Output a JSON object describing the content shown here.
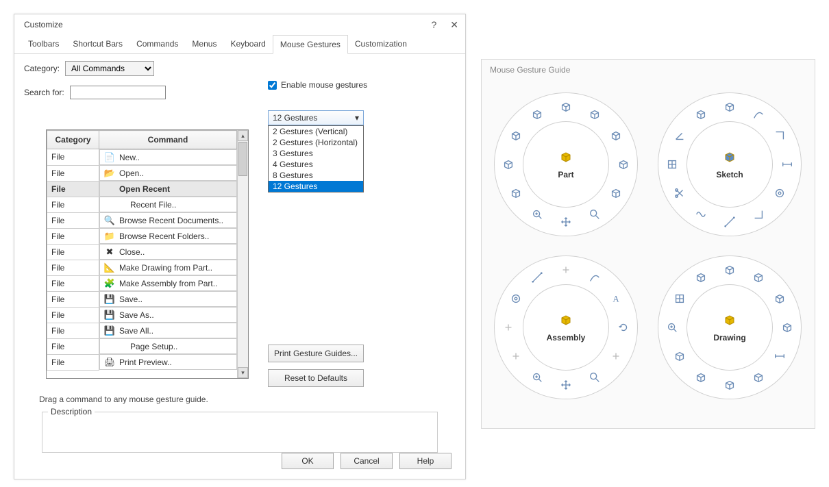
{
  "dialog": {
    "title": "Customize",
    "help_icon": "?",
    "close_icon": "✕",
    "tabs": [
      "Toolbars",
      "Shortcut Bars",
      "Commands",
      "Menus",
      "Keyboard",
      "Mouse Gestures",
      "Customization"
    ],
    "active_tab": 5,
    "category_label": "Category:",
    "category_value": "All Commands",
    "search_label": "Search for:",
    "enable_gestures_label": "Enable mouse gestures",
    "enable_gestures_checked": true,
    "gesture_select_value": "12 Gestures",
    "gesture_options": [
      "2 Gestures (Vertical)",
      "2 Gestures (Horizontal)",
      "3 Gestures",
      "4 Gestures",
      "8 Gestures",
      "12 Gestures"
    ],
    "gesture_selected_index": 5,
    "table": {
      "headers": [
        "Category",
        "Command"
      ],
      "rows": [
        {
          "cat": "File",
          "icon": "📄",
          "cmd": "New..",
          "sel": false
        },
        {
          "cat": "File",
          "icon": "📂",
          "cmd": "Open..",
          "sel": false
        },
        {
          "cat": "File",
          "icon": "",
          "cmd": "Open Recent",
          "sel": true
        },
        {
          "cat": "File",
          "icon": "",
          "cmd": "Recent File..",
          "sel": false,
          "indent": true
        },
        {
          "cat": "File",
          "icon": "🔍",
          "cmd": "Browse Recent Documents..",
          "sel": false
        },
        {
          "cat": "File",
          "icon": "📁",
          "cmd": "Browse Recent Folders..",
          "sel": false
        },
        {
          "cat": "File",
          "icon": "✖",
          "cmd": "Close..",
          "sel": false
        },
        {
          "cat": "File",
          "icon": "📐",
          "cmd": "Make Drawing from Part..",
          "sel": false
        },
        {
          "cat": "File",
          "icon": "🧩",
          "cmd": "Make Assembly from Part..",
          "sel": false
        },
        {
          "cat": "File",
          "icon": "💾",
          "cmd": "Save..",
          "sel": false
        },
        {
          "cat": "File",
          "icon": "💾",
          "cmd": "Save As..",
          "sel": false
        },
        {
          "cat": "File",
          "icon": "💾",
          "cmd": "Save All..",
          "sel": false
        },
        {
          "cat": "File",
          "icon": "",
          "cmd": "Page Setup..",
          "sel": false,
          "indent": true
        },
        {
          "cat": "File",
          "icon": "🖨",
          "cmd": "Print Preview..",
          "sel": false
        }
      ]
    },
    "print_guides_label": "Print Gesture Guides...",
    "reset_defaults_label": "Reset to Defaults",
    "drag_hint": "Drag a command to any mouse gesture guide.",
    "description_label": "Description",
    "ok_label": "OK",
    "cancel_label": "Cancel",
    "help_label": "Help"
  },
  "guide": {
    "title": "Mouse Gesture Guide",
    "wheels": [
      {
        "label": "Part",
        "center_color": "#e6b800",
        "slots": [
          "cube",
          "cube",
          "cube",
          "cube",
          "cube",
          "zoom",
          "move",
          "mag",
          "cube",
          "cube",
          "cube",
          "cube"
        ]
      },
      {
        "label": "Sketch",
        "center_color": "#5a8ccc",
        "slots": [
          "cube",
          "curve",
          "corner",
          "dim",
          "target",
          "corner2",
          "line",
          "wave",
          "cut",
          "grid",
          "angle",
          "cube"
        ]
      },
      {
        "label": "Assembly",
        "center_color": "#e6b800",
        "slots": [
          "plus",
          "curve",
          "A",
          "rot",
          "plus",
          "zoom",
          "move",
          "mag",
          "plus",
          "plus",
          "target",
          "line"
        ]
      },
      {
        "label": "Drawing",
        "center_color": "#e6b800",
        "slots": [
          "cube",
          "cube",
          "cube",
          "cube",
          "dim",
          "cube",
          "cube",
          "cube",
          "cube",
          "mag",
          "grid",
          "cube"
        ]
      }
    ],
    "wheel_outer_stroke": "#d0d0d0",
    "wheel_bg": "#ffffff",
    "icon_color": "#6a8bb5"
  }
}
